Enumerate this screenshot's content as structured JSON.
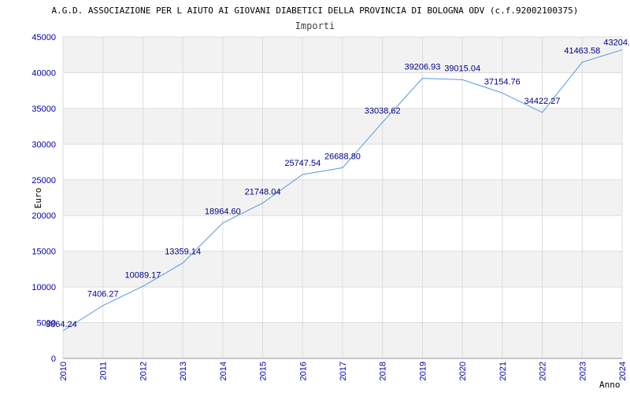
{
  "chart_data": {
    "type": "line",
    "title": "A.G.D. ASSOCIAZIONE PER L AIUTO AI GIOVANI DIABETICI DELLA PROVINCIA DI BOLOGNA ODV (c.f.92002100375)",
    "subtitle": "Importi",
    "xlabel": "Anno",
    "ylabel": "Euro",
    "ylim": [
      0,
      45000
    ],
    "yticks": [
      "0",
      "5000",
      "10000",
      "15000",
      "20000",
      "25000",
      "30000",
      "35000",
      "40000",
      "45000"
    ],
    "grid": "horizontal-bands",
    "x": [
      "2010",
      "2011",
      "2012",
      "2013",
      "2014",
      "2015",
      "2016",
      "2017",
      "2018",
      "2019",
      "2020",
      "2021",
      "2022",
      "2023",
      "2024"
    ],
    "series": [
      {
        "values": [
          3864.24,
          7406.27,
          10089.17,
          13359.14,
          18964.6,
          21748.04,
          25747.54,
          26688.8,
          33038.62,
          39206.93,
          39015.04,
          37154.76,
          34422.27,
          41463.58,
          43204.0
        ],
        "labels": [
          "3864.24",
          "7406.27",
          "10089.17",
          "13359.14",
          "18964.60",
          "21748.04",
          "25747.54",
          "26688.80",
          "33038.62",
          "39206.93",
          "39015.04",
          "37154.76",
          "34422.27",
          "41463.58",
          "43204."
        ]
      }
    ],
    "colors": {
      "line": "#5599dd",
      "axis_text": "#0000aa",
      "label_text": "#000088",
      "band": "#f2f2f2",
      "grid": "#dddddd"
    }
  }
}
